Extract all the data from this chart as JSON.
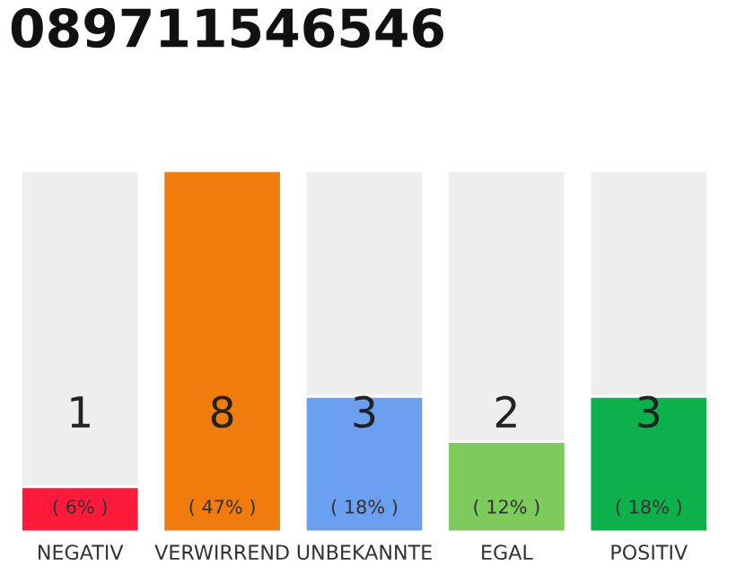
{
  "chart_data": {
    "type": "bar",
    "title": "089711546546",
    "categories": [
      "NEGATIV",
      "VERWIRREND",
      "UNBEKANNTE",
      "EGAL",
      "POSITIV"
    ],
    "values": [
      1,
      8,
      3,
      2,
      3
    ],
    "colors": [
      "#ff1a3c",
      "#f07c0e",
      "#6aa0ef",
      "#7ccb5c",
      "#0db14b"
    ],
    "data_labels": true,
    "annotations": [
      "( 6% )",
      "( 47% )",
      "( 18% )",
      "( 12% )",
      "( 18% )"
    ],
    "legend": false
  }
}
